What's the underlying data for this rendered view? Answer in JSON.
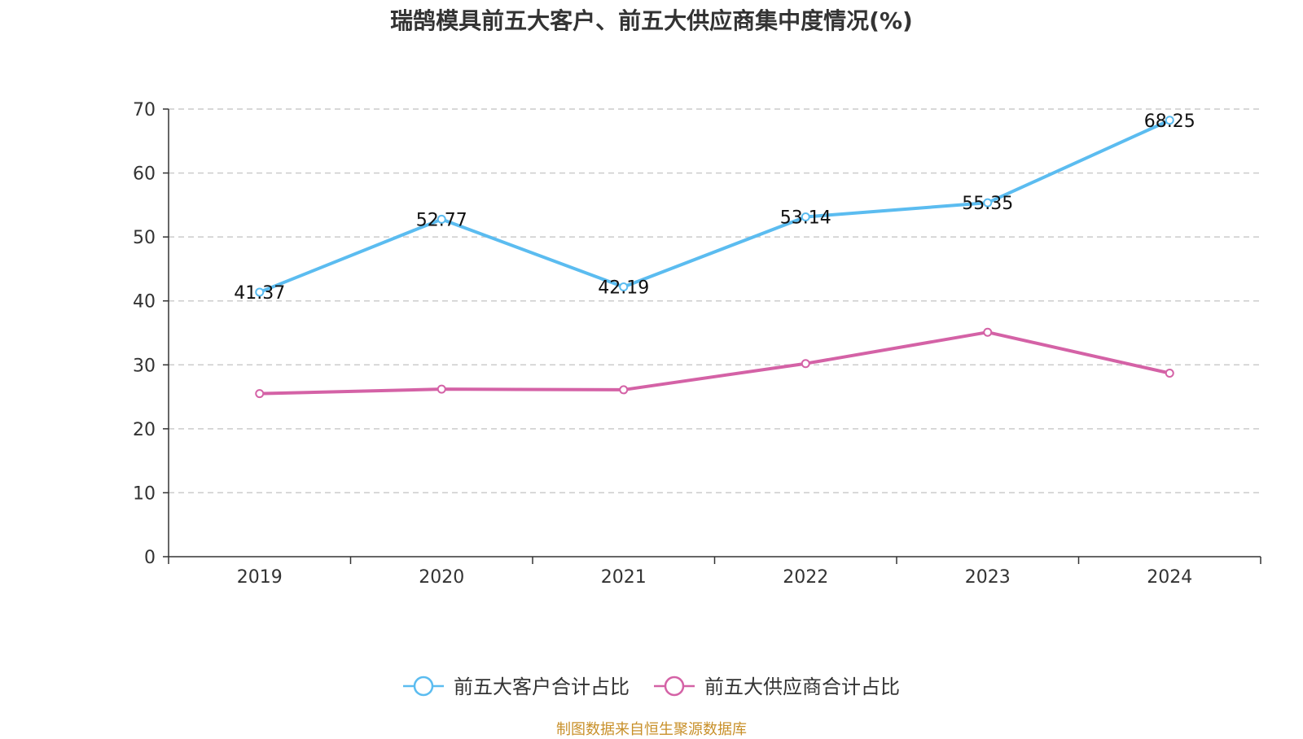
{
  "chart_data": {
    "type": "line",
    "title": "瑞鹄模具前五大客户、前五大供应商集中度情况(%)",
    "categories": [
      "2019",
      "2020",
      "2021",
      "2022",
      "2023",
      "2024"
    ],
    "ylim": [
      0,
      70
    ],
    "yticks": [
      "0",
      "10",
      "20",
      "30",
      "40",
      "50",
      "60",
      "70"
    ],
    "grid": "dashed-horizontal",
    "legend_position": "bottom-center",
    "series": [
      {
        "name": "前五大客户合计占比",
        "color": "#5bbcf0",
        "values": [
          41.37,
          52.77,
          42.19,
          53.14,
          55.35,
          68.25
        ],
        "labels": [
          "41.37",
          "52.77",
          "42.19",
          "53.14",
          "55.35",
          "68.25"
        ]
      },
      {
        "name": "前五大供应商合计占比",
        "color": "#d462a6",
        "values": [
          25.5,
          26.2,
          26.1,
          30.2,
          35.1,
          28.7
        ]
      }
    ]
  },
  "source": "制图数据来自恒生聚源数据库"
}
